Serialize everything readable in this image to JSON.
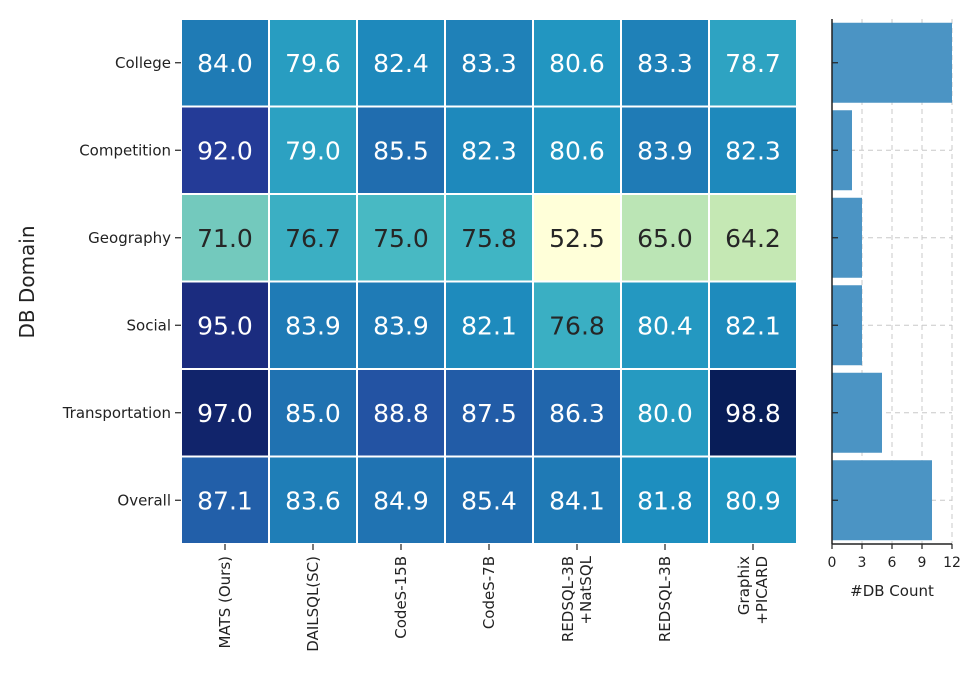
{
  "chart_data": [
    {
      "type": "heatmap",
      "ylabel": "DB Domain",
      "xlabel": "",
      "rows": [
        "College",
        "Competition",
        "Geography",
        "Social",
        "Transportation",
        "Overall"
      ],
      "columns": [
        [
          "MATS (Ours)"
        ],
        [
          "DAILSQL(SC)"
        ],
        [
          "CodeS-15B"
        ],
        [
          "CodeS-7B"
        ],
        [
          "REDSQL-3B",
          "+NatSQL"
        ],
        [
          "REDSQL-3B"
        ],
        [
          "Graphix",
          "+PICARD"
        ]
      ],
      "values": [
        [
          84.0,
          79.6,
          82.4,
          83.3,
          80.6,
          83.3,
          78.7
        ],
        [
          92.0,
          79.0,
          85.5,
          82.3,
          80.6,
          83.9,
          82.3
        ],
        [
          71.0,
          76.7,
          75.0,
          75.8,
          52.5,
          65.0,
          64.2
        ],
        [
          95.0,
          83.9,
          83.9,
          82.1,
          76.8,
          80.4,
          82.1
        ],
        [
          97.0,
          85.0,
          88.8,
          87.5,
          86.3,
          80.0,
          98.8
        ],
        [
          87.1,
          83.6,
          84.9,
          85.4,
          84.1,
          81.8,
          80.9
        ]
      ],
      "labels": [
        [
          "84.0",
          "79.6",
          "82.4",
          "83.3",
          "80.6",
          "83.3",
          "78.7"
        ],
        [
          "92.0",
          "79.0",
          "85.5",
          "82.3",
          "80.6",
          "83.9",
          "82.3"
        ],
        [
          "71.0",
          "76.7",
          "75.0",
          "75.8",
          "52.5",
          "65.0",
          "64.2"
        ],
        [
          "95.0",
          "83.9",
          "83.9",
          "82.1",
          "76.8",
          "80.4",
          "82.1"
        ],
        [
          "97.0",
          "85.0",
          "88.8",
          "87.5",
          "86.3",
          "80.0",
          "98.8"
        ],
        [
          "87.1",
          "83.6",
          "84.9",
          "85.4",
          "84.1",
          "81.8",
          "80.9"
        ]
      ],
      "colormap": "YlGnBu",
      "vmin": 52.5,
      "vmax": 98.8
    },
    {
      "type": "bar",
      "orientation": "horizontal",
      "categories": [
        "College",
        "Competition",
        "Geography",
        "Social",
        "Transportation",
        "Overall"
      ],
      "values": [
        12,
        2,
        3,
        3,
        5,
        10
      ],
      "xlabel": "#DB Count",
      "xlim": [
        0,
        12
      ],
      "xticks": [
        "0",
        "3",
        "6",
        "9",
        "12"
      ],
      "grid": true,
      "bar_color": "#4b94c4"
    }
  ]
}
